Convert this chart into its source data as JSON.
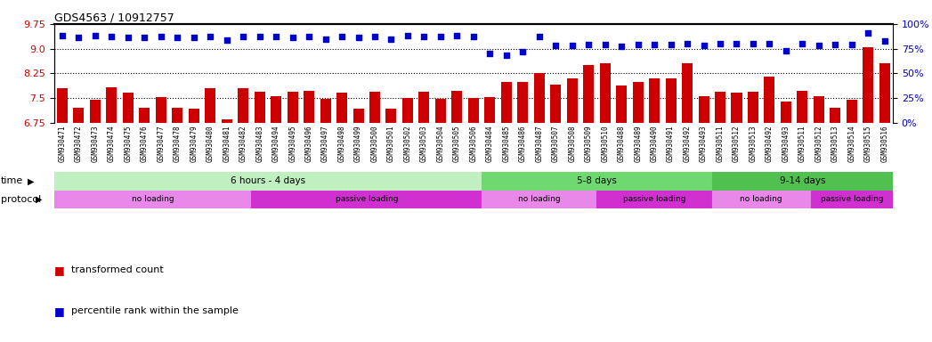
{
  "title": "GDS4563 / 10912757",
  "samples": [
    "GSM930471",
    "GSM930472",
    "GSM930473",
    "GSM930474",
    "GSM930475",
    "GSM930476",
    "GSM930477",
    "GSM930478",
    "GSM930479",
    "GSM930480",
    "GSM930481",
    "GSM930482",
    "GSM930483",
    "GSM930494",
    "GSM930495",
    "GSM930496",
    "GSM930497",
    "GSM930498",
    "GSM930499",
    "GSM930500",
    "GSM930501",
    "GSM930502",
    "GSM930503",
    "GSM930504",
    "GSM930505",
    "GSM930506",
    "GSM930484",
    "GSM930485",
    "GSM930486",
    "GSM930487",
    "GSM930507",
    "GSM930508",
    "GSM930509",
    "GSM930510",
    "GSM930488",
    "GSM930489",
    "GSM930490",
    "GSM930491",
    "GSM930492",
    "GSM930493",
    "GSM930511",
    "GSM930512",
    "GSM930513",
    "GSM930492",
    "GSM930493",
    "GSM930511",
    "GSM930512",
    "GSM930513",
    "GSM930514",
    "GSM930515",
    "GSM930516"
  ],
  "bar_values": [
    7.8,
    7.2,
    7.45,
    7.82,
    7.67,
    7.2,
    7.52,
    7.2,
    7.18,
    7.8,
    6.85,
    7.8,
    7.68,
    7.55,
    7.7,
    7.72,
    7.47,
    7.65,
    7.17,
    7.68,
    7.18,
    7.5,
    7.7,
    7.48,
    7.72,
    7.5,
    7.52,
    8.0,
    8.0,
    8.25,
    7.9,
    8.1,
    8.5,
    8.55,
    7.88,
    8.0,
    8.1,
    8.1,
    8.55,
    7.55,
    7.68,
    7.65,
    7.68,
    8.15,
    7.38,
    7.72,
    7.55,
    7.2,
    7.45,
    9.05,
    8.55
  ],
  "dot_values": [
    88,
    86,
    88,
    87,
    86,
    86,
    87,
    86,
    86,
    87,
    84,
    87,
    87,
    87,
    86,
    87,
    85,
    87,
    86,
    87,
    85,
    88,
    87,
    87,
    88,
    87,
    70,
    68,
    72,
    87,
    78,
    78,
    79,
    79,
    77,
    79,
    79,
    79,
    80,
    78,
    80,
    80,
    80,
    80,
    73,
    80,
    78,
    79,
    79,
    91,
    83
  ],
  "ylim_left": [
    6.75,
    9.75
  ],
  "yticks_left": [
    6.75,
    7.5,
    8.25,
    9.0,
    9.75
  ],
  "yticks_right": [
    0,
    25,
    50,
    75,
    100
  ],
  "hlines": [
    7.5,
    8.25,
    9.0
  ],
  "bar_color": "#cc0000",
  "dot_color": "#0000cc",
  "bg_color": "#ffffff",
  "tick_area_color": "#d0d0d0",
  "time_groups": [
    {
      "label": "6 hours - 4 days",
      "start": 0,
      "end": 26,
      "color": "#c0f0c0"
    },
    {
      "label": "5-8 days",
      "start": 26,
      "end": 40,
      "color": "#70d870"
    },
    {
      "label": "9-14 days",
      "start": 40,
      "end": 51,
      "color": "#50c050"
    }
  ],
  "protocol_groups": [
    {
      "label": "no loading",
      "start": 0,
      "end": 12,
      "color": "#e888e8"
    },
    {
      "label": "passive loading",
      "start": 12,
      "end": 26,
      "color": "#d030d0"
    },
    {
      "label": "no loading",
      "start": 26,
      "end": 33,
      "color": "#e888e8"
    },
    {
      "label": "passive loading",
      "start": 33,
      "end": 40,
      "color": "#d030d0"
    },
    {
      "label": "no loading",
      "start": 40,
      "end": 46,
      "color": "#e888e8"
    },
    {
      "label": "passive loading",
      "start": 46,
      "end": 51,
      "color": "#d030d0"
    }
  ],
  "legend_bar_label": "transformed count",
  "legend_dot_label": "percentile rank within the sample",
  "figure_width": 10.47,
  "figure_height": 3.84,
  "dpi": 100
}
